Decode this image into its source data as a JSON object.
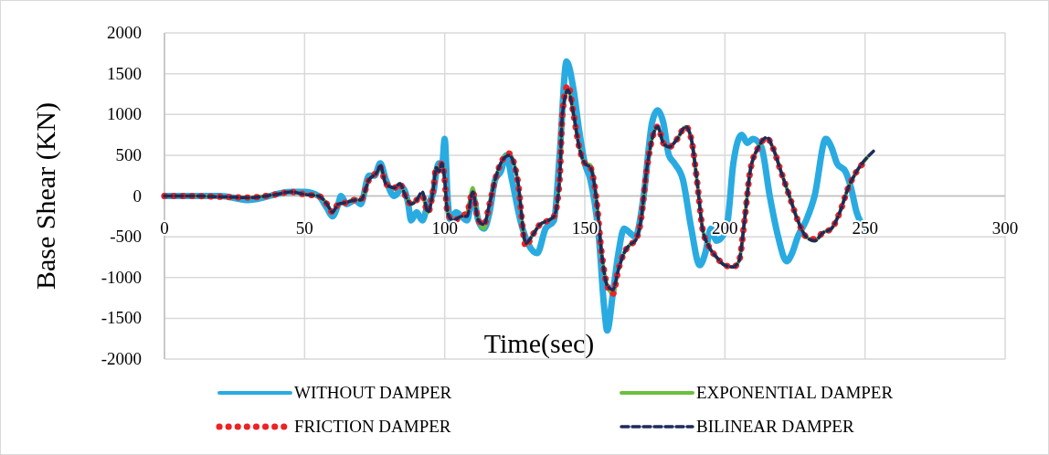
{
  "chart_data": {
    "type": "line",
    "xlabel": "Time(sec)",
    "ylabel": "Base Shear (KN)",
    "xlim": [
      0,
      300
    ],
    "xticks": [
      0,
      50,
      100,
      150,
      200,
      250,
      300
    ],
    "ylim": [
      -2000,
      2000
    ],
    "yticks": [
      -2000,
      -1500,
      -1000,
      -500,
      0,
      500,
      1000,
      1500,
      2000
    ],
    "grid": true,
    "legend": "bottom",
    "series": [
      {
        "name": "WITHOUT DAMPER",
        "color": "#29abe2",
        "line_style": "solid",
        "x": [
          0,
          20,
          30,
          45,
          50,
          55,
          58,
          60,
          62,
          63,
          65,
          68,
          70,
          73,
          75,
          77,
          79,
          82,
          85,
          87,
          88,
          90,
          92,
          94,
          96,
          97,
          98,
          99,
          100,
          101,
          102,
          104,
          106,
          108,
          110,
          112,
          114,
          116,
          118,
          120,
          122,
          124,
          127,
          130,
          133,
          136,
          139,
          141,
          143.5,
          146,
          148,
          150,
          152,
          155,
          157,
          158,
          160,
          162,
          164,
          166,
          168,
          171,
          174,
          176,
          178,
          180,
          182,
          185,
          188,
          191,
          193,
          195,
          197,
          199,
          201,
          203,
          206,
          208,
          210,
          213,
          216,
          219,
          222,
          224,
          226,
          229,
          232,
          236,
          238,
          240,
          243,
          245,
          247,
          250
        ],
        "values": [
          0,
          0,
          -50,
          50,
          50,
          0,
          -150,
          -250,
          -100,
          0,
          -100,
          -50,
          -100,
          250,
          250,
          400,
          200,
          0,
          100,
          -100,
          -300,
          -200,
          -300,
          -100,
          50,
          300,
          400,
          350,
          700,
          0,
          -300,
          -200,
          -250,
          -300,
          0,
          -300,
          -400,
          -200,
          200,
          300,
          500,
          200,
          -300,
          -600,
          -700,
          -400,
          -300,
          500,
          1650,
          1300,
          800,
          400,
          200,
          -500,
          -1400,
          -1650,
          -1200,
          -700,
          -400,
          -450,
          -500,
          0,
          900,
          1050,
          900,
          500,
          400,
          200,
          -400,
          -850,
          -700,
          -400,
          -550,
          -500,
          -300,
          400,
          750,
          650,
          700,
          600,
          0,
          -500,
          -800,
          -700,
          -500,
          -300,
          0,
          700,
          600,
          400,
          300,
          100,
          -200,
          -400
        ]
      },
      {
        "name": "EXPONENTIAL DAMPER",
        "color": "#6bbf3f",
        "line_style": "solid",
        "x": [
          0,
          10,
          20,
          30,
          40,
          45,
          50,
          55,
          58,
          60,
          62,
          65,
          68,
          70,
          73,
          76,
          77,
          79,
          82,
          84,
          86,
          88,
          90,
          92,
          94,
          96,
          97,
          98,
          99,
          100,
          101,
          103,
          106,
          108,
          110,
          112,
          114,
          116,
          118,
          120,
          123,
          126,
          129,
          131,
          134,
          137,
          139,
          141,
          142,
          144,
          146,
          148,
          150,
          152,
          154,
          156,
          158,
          160,
          162,
          164,
          166,
          168,
          170,
          172,
          174,
          176,
          178,
          180,
          183,
          186,
          188,
          190,
          192,
          194,
          197,
          200,
          203,
          205,
          207,
          209,
          212,
          215,
          217,
          220,
          223,
          226,
          229,
          232,
          235,
          238,
          241,
          244,
          247,
          251
        ],
        "values": [
          0,
          0,
          -10,
          -20,
          20,
          50,
          20,
          0,
          -100,
          -200,
          -100,
          -80,
          -50,
          -50,
          200,
          300,
          350,
          150,
          100,
          150,
          0,
          -100,
          -50,
          0,
          -200,
          100,
          350,
          300,
          400,
          200,
          -200,
          -300,
          -250,
          -200,
          100,
          -300,
          -400,
          -100,
          200,
          400,
          520,
          200,
          -600,
          -500,
          -350,
          -300,
          -250,
          200,
          1000,
          1300,
          1000,
          600,
          400,
          380,
          0,
          -700,
          -1100,
          -1200,
          -900,
          -700,
          -600,
          -550,
          -300,
          300,
          700,
          850,
          650,
          600,
          700,
          850,
          700,
          200,
          -400,
          -600,
          -750,
          -850,
          -870,
          -800,
          -300,
          300,
          600,
          700,
          600,
          300,
          0,
          -300,
          -500,
          -550,
          -450,
          -400,
          -200,
          100,
          300,
          480
        ]
      },
      {
        "name": "FRICTION DAMPER",
        "color": "#ed2224",
        "line_style": "dotted",
        "x": [
          0,
          10,
          20,
          30,
          40,
          45,
          50,
          55,
          58,
          60,
          62,
          65,
          68,
          70,
          73,
          76,
          77,
          79,
          82,
          84,
          86,
          88,
          90,
          92,
          94,
          96,
          97,
          98,
          99,
          100,
          101,
          103,
          106,
          108,
          110,
          112,
          114,
          116,
          118,
          120,
          123,
          126,
          129,
          131,
          134,
          137,
          139,
          141,
          142,
          144,
          146,
          148,
          150,
          152,
          154,
          156,
          158,
          160,
          162,
          164,
          166,
          168,
          170,
          172,
          174,
          176,
          178,
          180,
          183,
          186,
          188,
          190,
          192,
          194,
          197,
          200,
          203,
          205,
          207,
          209,
          212,
          215,
          217,
          220,
          223,
          226,
          229,
          232,
          235,
          238,
          241,
          244,
          247,
          251
        ],
        "values": [
          0,
          0,
          -10,
          -20,
          20,
          50,
          20,
          0,
          -100,
          -200,
          -100,
          -80,
          -50,
          -50,
          200,
          300,
          350,
          150,
          100,
          150,
          0,
          -100,
          -50,
          0,
          -200,
          100,
          350,
          300,
          400,
          200,
          -200,
          -300,
          -250,
          -200,
          50,
          -300,
          -350,
          -100,
          200,
          400,
          520,
          200,
          -620,
          -500,
          -350,
          -300,
          -250,
          200,
          1000,
          1360,
          1000,
          600,
          400,
          350,
          0,
          -700,
          -1100,
          -1200,
          -900,
          -700,
          -600,
          -550,
          -300,
          300,
          700,
          850,
          650,
          600,
          700,
          850,
          700,
          200,
          -400,
          -600,
          -750,
          -850,
          -870,
          -800,
          -300,
          300,
          600,
          710,
          600,
          300,
          0,
          -300,
          -500,
          -530,
          -450,
          -400,
          -200,
          100,
          300,
          450
        ]
      },
      {
        "name": "BILINEAR DAMPER",
        "color": "#1f2a5c",
        "line_style": "dashed",
        "x": [
          0,
          10,
          20,
          30,
          40,
          45,
          50,
          55,
          58,
          60,
          62,
          65,
          68,
          70,
          73,
          76,
          77,
          79,
          82,
          84,
          86,
          88,
          90,
          92,
          94,
          96,
          97,
          98,
          99,
          100,
          101,
          103,
          106,
          108,
          110,
          112,
          114,
          116,
          118,
          120,
          123,
          126,
          129,
          131,
          134,
          137,
          139,
          141,
          142,
          144,
          146,
          148,
          150,
          152,
          154,
          156,
          158,
          160,
          162,
          164,
          166,
          168,
          170,
          172,
          174,
          176,
          178,
          180,
          183,
          186,
          188,
          190,
          192,
          194,
          197,
          200,
          203,
          205,
          207,
          209,
          212,
          215,
          217,
          220,
          223,
          226,
          229,
          232,
          235,
          238,
          241,
          244,
          247,
          253
        ],
        "values": [
          0,
          0,
          -10,
          -20,
          20,
          50,
          20,
          0,
          -100,
          -200,
          -100,
          -80,
          -50,
          -50,
          200,
          300,
          380,
          150,
          100,
          150,
          0,
          -100,
          -50,
          50,
          -200,
          100,
          350,
          300,
          400,
          200,
          -200,
          -300,
          -250,
          -250,
          50,
          -300,
          -350,
          -100,
          200,
          400,
          500,
          200,
          -580,
          -500,
          -350,
          -300,
          -250,
          200,
          1000,
          1300,
          1000,
          600,
          400,
          350,
          0,
          -700,
          -1100,
          -1150,
          -900,
          -700,
          -600,
          -550,
          -300,
          300,
          700,
          850,
          650,
          600,
          700,
          850,
          700,
          200,
          -400,
          -600,
          -750,
          -850,
          -870,
          -800,
          -300,
          300,
          600,
          720,
          600,
          300,
          0,
          -300,
          -500,
          -550,
          -450,
          -400,
          -200,
          100,
          300,
          550
        ]
      }
    ]
  }
}
